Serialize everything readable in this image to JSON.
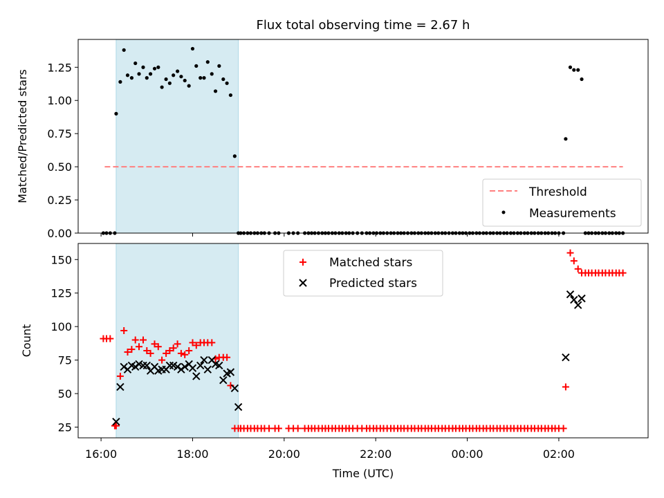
{
  "title": "Flux total observing time = 2.67 h",
  "colors": {
    "shade": "#add8e6",
    "threshold": "#ff7f7f",
    "measurement": "#000000",
    "matched": "#ff0000",
    "predicted": "#000000"
  },
  "chart_data": [
    {
      "type": "scatter",
      "ylabel": "Matched/Predicted stars",
      "xlim": [
        15.5,
        27.95
      ],
      "ylim": [
        0,
        1.46
      ],
      "yticks": [
        0,
        0.25,
        0.5,
        0.75,
        1.0,
        1.25
      ],
      "ytick_labels": [
        "0.00",
        "0.25",
        "0.50",
        "0.75",
        "1.00",
        "1.25"
      ],
      "shaded_span": [
        16.33,
        19.0
      ],
      "threshold": {
        "value": 0.5,
        "x_range": [
          16.08,
          27.4
        ]
      },
      "legend": {
        "placement": "lower-right",
        "entries": [
          "Threshold",
          "Measurements"
        ]
      },
      "series": [
        {
          "name": "Measurements",
          "x": [
            16.33,
            16.42,
            16.5,
            16.58,
            16.67,
            16.75,
            16.83,
            16.92,
            17.0,
            17.08,
            17.17,
            17.25,
            17.33,
            17.42,
            17.5,
            17.58,
            17.67,
            17.75,
            17.83,
            17.92,
            18.0,
            18.08,
            18.17,
            18.25,
            18.33,
            18.42,
            18.5,
            18.58,
            18.67,
            18.75,
            18.83,
            18.92,
            19.0,
            26.15,
            26.25,
            26.33,
            26.42,
            26.5
          ],
          "y": [
            0.9,
            1.14,
            1.38,
            1.19,
            1.17,
            1.28,
            1.2,
            1.25,
            1.17,
            1.2,
            1.24,
            1.25,
            1.1,
            1.16,
            1.13,
            1.19,
            1.22,
            1.18,
            1.15,
            1.11,
            1.39,
            1.26,
            1.17,
            1.17,
            1.29,
            1.2,
            1.07,
            1.26,
            1.16,
            1.13,
            1.04,
            0.58,
            0.0,
            0.71,
            1.25,
            1.23,
            1.23,
            1.16
          ],
          "zero_x": [
            16.05,
            16.12,
            16.2,
            16.3,
            19.05,
            19.12,
            19.2,
            19.27,
            19.35,
            19.42,
            19.5,
            19.57,
            19.67,
            19.8,
            19.88,
            20.1,
            20.2,
            20.3,
            20.45,
            20.53,
            20.6,
            20.67,
            20.75,
            20.83,
            20.9,
            20.97,
            21.05,
            21.12,
            21.2,
            21.27,
            21.35,
            21.42,
            21.5,
            21.6,
            21.7,
            21.8,
            21.87,
            21.95,
            22.02,
            22.1,
            22.17,
            22.25,
            22.33,
            22.4,
            22.48,
            22.55,
            22.62,
            22.7,
            22.78,
            22.85,
            22.93,
            23.0,
            23.08,
            23.15,
            23.22,
            23.3,
            23.37,
            23.45,
            23.52,
            23.6,
            23.68,
            23.75,
            23.83,
            23.9,
            23.97,
            24.05,
            24.12,
            24.2,
            24.27,
            24.35,
            24.42,
            24.5,
            24.57,
            24.65,
            24.72,
            24.8,
            24.87,
            24.95,
            25.02,
            25.1,
            25.17,
            25.25,
            25.32,
            25.4,
            25.47,
            25.55,
            25.62,
            25.7,
            25.77,
            25.85,
            25.92,
            26.0,
            26.1,
            26.58,
            26.65,
            26.72,
            26.8,
            26.87,
            26.95,
            27.02,
            27.1,
            27.17,
            27.25,
            27.32,
            27.4
          ]
        }
      ]
    },
    {
      "type": "scatter",
      "title": "",
      "xlabel": "Time (UTC)",
      "ylabel": "Count",
      "xlim": [
        15.5,
        27.95
      ],
      "ylim": [
        17,
        162
      ],
      "yticks": [
        25,
        50,
        75,
        100,
        125,
        150
      ],
      "ytick_labels": [
        "25",
        "50",
        "75",
        "100",
        "125",
        "150"
      ],
      "xticks": [
        16,
        18,
        20,
        22,
        24,
        26
      ],
      "xtick_labels": [
        "16:00",
        "18:00",
        "20:00",
        "22:00",
        "00:00",
        "02:00"
      ],
      "shaded_span": [
        16.33,
        19.0
      ],
      "legend": {
        "placement": "upper-center",
        "entries": [
          "Matched stars",
          "Predicted stars"
        ]
      },
      "series": [
        {
          "name": "Matched stars",
          "x": [
            16.05,
            16.12,
            16.2,
            16.3,
            16.33,
            16.42,
            16.5,
            16.58,
            16.67,
            16.75,
            16.83,
            16.92,
            17.0,
            17.08,
            17.17,
            17.25,
            17.33,
            17.42,
            17.5,
            17.58,
            17.67,
            17.75,
            17.83,
            17.92,
            18.0,
            18.08,
            18.17,
            18.25,
            18.33,
            18.42,
            18.5,
            18.58,
            18.67,
            18.75,
            18.83,
            18.92,
            19.0,
            26.15,
            26.25,
            26.33,
            26.42,
            26.5,
            26.58,
            26.65,
            26.72,
            26.8,
            26.87,
            26.95,
            27.02,
            27.1,
            27.17,
            27.25,
            27.32,
            27.4
          ],
          "y": [
            91,
            91,
            91,
            26,
            26,
            63,
            97,
            81,
            83,
            90,
            85,
            90,
            82,
            80,
            87,
            85,
            75,
            80,
            82,
            84,
            87,
            80,
            79,
            82,
            88,
            86,
            88,
            88,
            88,
            88,
            76,
            77,
            77,
            77,
            56,
            24,
            24,
            55,
            155,
            149,
            143,
            140,
            140,
            140,
            140,
            140,
            140,
            140,
            140,
            140,
            140,
            140,
            140,
            140
          ],
          "floor_value": 24,
          "floor_x": [
            19.05,
            19.12,
            19.2,
            19.27,
            19.35,
            19.42,
            19.5,
            19.57,
            19.67,
            19.8,
            19.88,
            20.1,
            20.2,
            20.3,
            20.45,
            20.53,
            20.6,
            20.67,
            20.75,
            20.83,
            20.9,
            20.97,
            21.05,
            21.12,
            21.2,
            21.27,
            21.35,
            21.42,
            21.5,
            21.6,
            21.7,
            21.8,
            21.87,
            21.95,
            22.02,
            22.1,
            22.17,
            22.25,
            22.33,
            22.4,
            22.48,
            22.55,
            22.62,
            22.7,
            22.78,
            22.85,
            22.93,
            23.0,
            23.08,
            23.15,
            23.22,
            23.3,
            23.37,
            23.45,
            23.52,
            23.6,
            23.68,
            23.75,
            23.83,
            23.9,
            23.97,
            24.05,
            24.12,
            24.2,
            24.27,
            24.35,
            24.42,
            24.5,
            24.57,
            24.65,
            24.72,
            24.8,
            24.87,
            24.95,
            25.02,
            25.1,
            25.17,
            25.25,
            25.32,
            25.4,
            25.47,
            25.55,
            25.62,
            25.7,
            25.77,
            25.85,
            25.92,
            26.0,
            26.1
          ]
        },
        {
          "name": "Predicted stars",
          "x": [
            16.33,
            16.42,
            16.5,
            16.58,
            16.67,
            16.75,
            16.83,
            16.92,
            17.0,
            17.08,
            17.17,
            17.25,
            17.33,
            17.42,
            17.5,
            17.58,
            17.67,
            17.75,
            17.83,
            17.92,
            18.0,
            18.08,
            18.17,
            18.25,
            18.33,
            18.42,
            18.5,
            18.58,
            18.67,
            18.75,
            18.83,
            18.92,
            19.0,
            26.15,
            26.25,
            26.33,
            26.42,
            26.5
          ],
          "y": [
            29,
            55,
            70,
            68,
            71,
            70,
            72,
            71,
            71,
            67,
            70,
            67,
            68,
            68,
            71,
            71,
            70,
            68,
            70,
            72,
            69,
            63,
            71,
            75,
            68,
            75,
            72,
            71,
            60,
            65,
            66,
            54,
            40,
            77,
            124,
            120,
            116,
            121
          ]
        }
      ]
    }
  ]
}
